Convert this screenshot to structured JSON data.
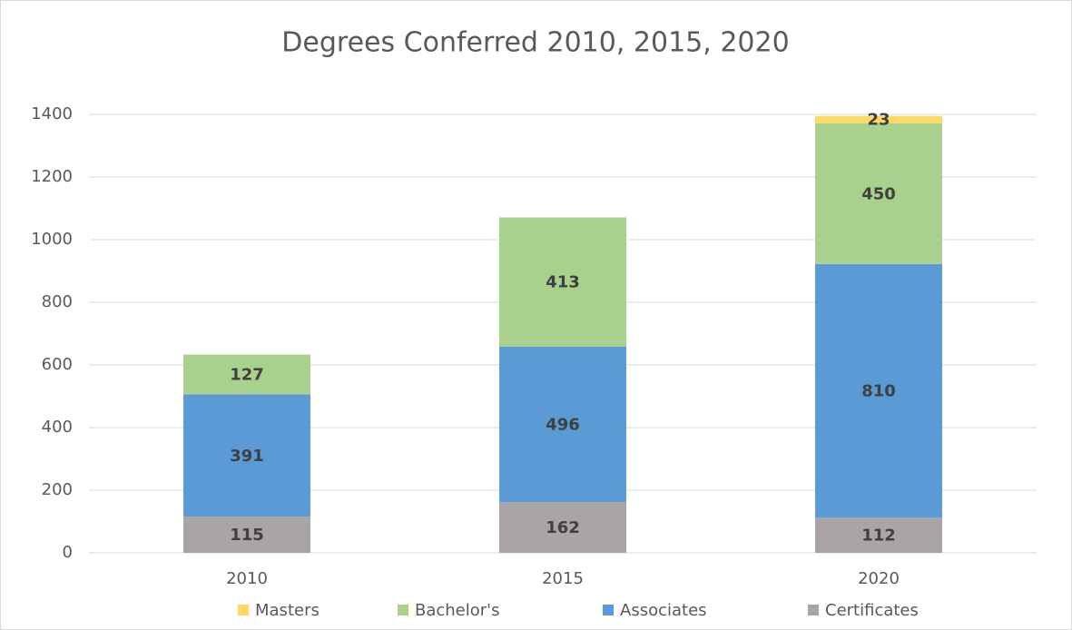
{
  "chart_data": {
    "type": "stacked_bar",
    "title": "Degrees Conferred 2010, 2015, 2020",
    "categories": [
      "2010",
      "2015",
      "2020"
    ],
    "series": [
      {
        "name": "Certificates",
        "color": "#a9a5a4",
        "values": [
          115,
          162,
          112
        ]
      },
      {
        "name": "Associates",
        "color": "#5b9bd5",
        "values": [
          391,
          496,
          810
        ]
      },
      {
        "name": "Bachelor's",
        "color": "#a9d18e",
        "values": [
          127,
          413,
          450
        ]
      },
      {
        "name": "Masters",
        "color": "#ffd966",
        "values": [
          null,
          null,
          23
        ]
      }
    ],
    "ylim": [
      0,
      1400
    ],
    "yticks": [
      0,
      200,
      400,
      600,
      800,
      1000,
      1200,
      1400
    ],
    "grid": true,
    "legend": "bottom"
  }
}
